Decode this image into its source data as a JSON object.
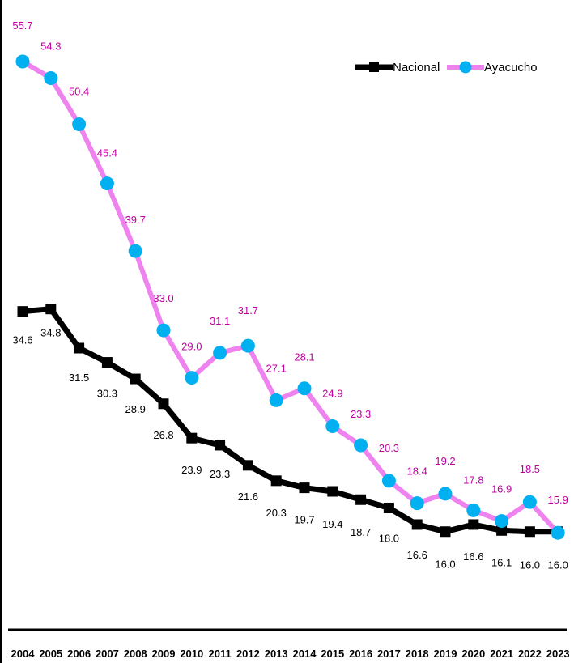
{
  "chart_data": {
    "type": "line",
    "categories": [
      "2004",
      "2005",
      "2006",
      "2007",
      "2008",
      "2009",
      "2010",
      "2011",
      "2012",
      "2013",
      "2014",
      "2015",
      "2016",
      "2017",
      "2018",
      "2019",
      "2020",
      "2021",
      "2022",
      "2023"
    ],
    "ylim": [
      14,
      57
    ],
    "grid": false,
    "legend_position": "top-right",
    "series": [
      {
        "name": "Nacional",
        "color": "#000000",
        "marker": "square",
        "values": [
          34.6,
          34.8,
          31.5,
          30.3,
          28.9,
          26.8,
          23.9,
          23.3,
          21.6,
          20.3,
          19.7,
          19.4,
          18.7,
          18.0,
          16.6,
          16.0,
          16.6,
          16.1,
          16.0,
          16.0
        ],
        "labels": [
          "34.6",
          "34.8",
          "31.5",
          "30.3",
          "28.9",
          "26.8",
          "23.9",
          "23.3",
          "21.6",
          "20.3",
          "19.7",
          "19.4",
          "18.7",
          "18.0",
          "16.6",
          "16.0",
          "16.6",
          "16.1",
          "16.0",
          "16.0"
        ],
        "label_color": "#000000"
      },
      {
        "name": "Ayacucho",
        "color": "#ee82ee",
        "marker_color": "#00b0f0",
        "marker": "circle",
        "values": [
          55.7,
          54.3,
          50.4,
          45.4,
          39.7,
          33.0,
          29.0,
          31.1,
          31.7,
          27.1,
          28.1,
          24.9,
          23.3,
          20.3,
          18.4,
          19.2,
          17.8,
          16.9,
          18.5,
          15.9
        ],
        "labels": [
          "55.7",
          "54.3",
          "50.4",
          "45.4",
          "39.7",
          "33.0",
          "29.0",
          "31.1",
          "31.7",
          "27.1",
          "28.1",
          "24.9",
          "23.3",
          "20.3",
          "18.4",
          "19.2",
          "17.8",
          "16.9",
          "18.5",
          "15.9"
        ],
        "label_color": "#c000a0"
      }
    ]
  }
}
